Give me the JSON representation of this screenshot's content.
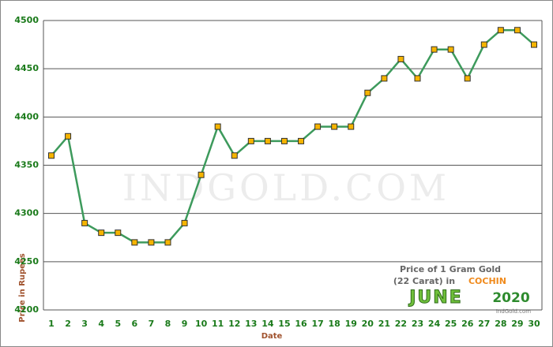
{
  "chart_data": {
    "type": "line",
    "categories": [
      "1",
      "2",
      "3",
      "4",
      "5",
      "6",
      "7",
      "8",
      "9",
      "10",
      "11",
      "12",
      "13",
      "14",
      "15",
      "16",
      "17",
      "18",
      "19",
      "20",
      "21",
      "22",
      "23",
      "24",
      "25",
      "26",
      "27",
      "28",
      "29",
      "30"
    ],
    "series": [
      {
        "name": "Price",
        "color": "#3d9a5c",
        "marker_color": "#f5b400",
        "values": [
          4360,
          4380,
          4290,
          4280,
          4280,
          4270,
          4270,
          4270,
          4290,
          4340,
          4390,
          4360,
          4375,
          4375,
          4375,
          4375,
          4390,
          4390,
          4390,
          4425,
          4440,
          4460,
          4440,
          4470,
          4470,
          4440,
          4475,
          4490,
          4490,
          4475
        ]
      }
    ],
    "ylim": [
      4200,
      4500
    ],
    "yticks": [
      4200,
      4250,
      4300,
      4350,
      4400,
      4450,
      4500
    ],
    "grid": true,
    "x_label": "Date",
    "y_label": "Price in Rupees",
    "watermark": "IndGold.com",
    "annotations": {
      "line1": "Price of 1 Gram Gold",
      "line2": "(22 Carat) in",
      "city": "COCHIN",
      "month": "JUNE",
      "year": "2020",
      "source": "IndGold.com"
    }
  }
}
